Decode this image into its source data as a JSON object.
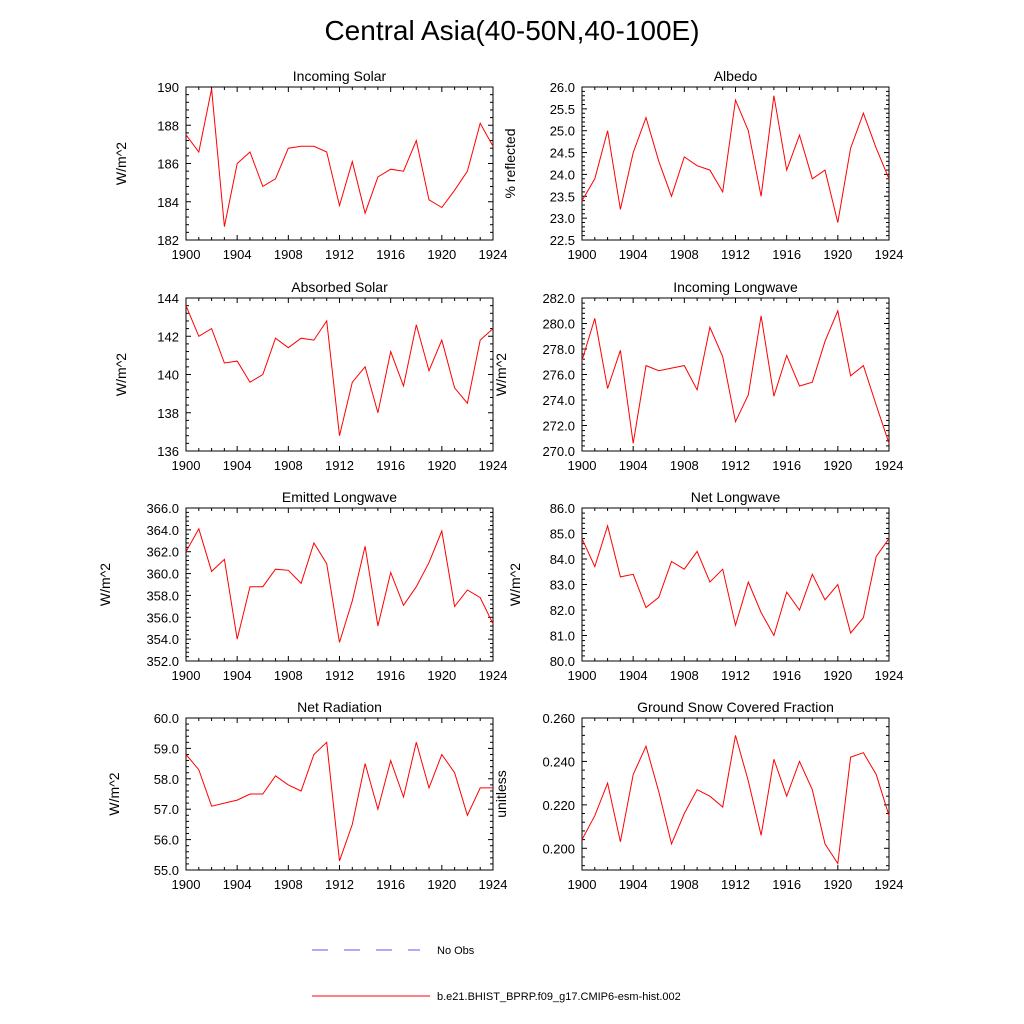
{
  "figure": {
    "title": "Central Asia(40-50N,40-100E)",
    "series_color": "#ff0000",
    "obs_color": "#5a5aff"
  },
  "legend": {
    "obs_label": "No Obs",
    "model_label": "b.e21.BHIST_BPRP.f09_g17.CMIP6-esm-hist.002"
  },
  "chart_data": [
    {
      "type": "line",
      "title": "Incoming Solar",
      "xlabel": "",
      "ylabel": "W/m^2",
      "xlim": [
        1900,
        1924
      ],
      "ylim": [
        182,
        190
      ],
      "xticks": [
        1900,
        1904,
        1908,
        1912,
        1916,
        1920,
        1924
      ],
      "xtick_labels": [
        "1900",
        "1904",
        "1908",
        "1912",
        "1916",
        "1920",
        "1924"
      ],
      "yticks": [
        182,
        184,
        186,
        188,
        190
      ],
      "ytick_labels": [
        "182",
        "184",
        "186",
        "188",
        "190"
      ],
      "x": [
        1900,
        1901,
        1902,
        1903,
        1904,
        1905,
        1906,
        1907,
        1908,
        1909,
        1910,
        1911,
        1912,
        1913,
        1914,
        1915,
        1916,
        1917,
        1918,
        1919,
        1920,
        1921,
        1922,
        1923,
        1924
      ],
      "values": [
        187.5,
        186.6,
        189.9,
        182.7,
        186.0,
        186.6,
        184.8,
        185.2,
        186.8,
        186.9,
        186.9,
        186.6,
        183.8,
        186.1,
        183.4,
        185.3,
        185.7,
        185.6,
        187.2,
        184.1,
        183.7,
        184.6,
        185.6,
        188.1,
        186.9
      ]
    },
    {
      "type": "line",
      "title": "Albedo",
      "xlabel": "",
      "ylabel": "% reflected",
      "xlim": [
        1900,
        1924
      ],
      "ylim": [
        22.5,
        26.0
      ],
      "xticks": [
        1900,
        1904,
        1908,
        1912,
        1916,
        1920,
        1924
      ],
      "xtick_labels": [
        "1900",
        "1904",
        "1908",
        "1912",
        "1916",
        "1920",
        "1924"
      ],
      "yticks": [
        22.5,
        23.0,
        23.5,
        24.0,
        24.5,
        25.0,
        25.5,
        26.0
      ],
      "ytick_labels": [
        "22.5",
        "23.0",
        "23.5",
        "24.0",
        "24.5",
        "25.0",
        "25.5",
        "26.0"
      ],
      "x": [
        1900,
        1901,
        1902,
        1903,
        1904,
        1905,
        1906,
        1907,
        1908,
        1909,
        1910,
        1911,
        1912,
        1913,
        1914,
        1915,
        1916,
        1917,
        1918,
        1919,
        1920,
        1921,
        1922,
        1923,
        1924
      ],
      "values": [
        23.4,
        23.9,
        25.0,
        23.2,
        24.5,
        25.3,
        24.3,
        23.5,
        24.4,
        24.2,
        24.1,
        23.6,
        25.7,
        25.0,
        23.5,
        25.8,
        24.1,
        24.9,
        23.9,
        24.1,
        22.9,
        24.6,
        25.4,
        24.6,
        23.9
      ]
    },
    {
      "type": "line",
      "title": "Absorbed Solar",
      "xlabel": "",
      "ylabel": "W/m^2",
      "xlim": [
        1900,
        1924
      ],
      "ylim": [
        136,
        144
      ],
      "xticks": [
        1900,
        1904,
        1908,
        1912,
        1916,
        1920,
        1924
      ],
      "xtick_labels": [
        "1900",
        "1904",
        "1908",
        "1912",
        "1916",
        "1920",
        "1924"
      ],
      "yticks": [
        136,
        138,
        140,
        142,
        144
      ],
      "ytick_labels": [
        "136",
        "138",
        "140",
        "142",
        "144"
      ],
      "x": [
        1900,
        1901,
        1902,
        1903,
        1904,
        1905,
        1906,
        1907,
        1908,
        1909,
        1910,
        1911,
        1912,
        1913,
        1914,
        1915,
        1916,
        1917,
        1918,
        1919,
        1920,
        1921,
        1922,
        1923,
        1924
      ],
      "values": [
        143.6,
        142.0,
        142.4,
        140.6,
        140.7,
        139.6,
        140.0,
        141.9,
        141.4,
        141.9,
        141.8,
        142.8,
        136.8,
        139.6,
        140.4,
        138.0,
        141.2,
        139.4,
        142.6,
        140.2,
        141.8,
        139.3,
        138.5,
        141.8,
        142.4
      ]
    },
    {
      "type": "line",
      "title": "Incoming Longwave",
      "xlabel": "",
      "ylabel": "W/m^2",
      "xlim": [
        1900,
        1924
      ],
      "ylim": [
        270.0,
        282.0
      ],
      "xticks": [
        1900,
        1904,
        1908,
        1912,
        1916,
        1920,
        1924
      ],
      "xtick_labels": [
        "1900",
        "1904",
        "1908",
        "1912",
        "1916",
        "1920",
        "1924"
      ],
      "yticks": [
        270,
        272,
        274,
        276,
        278,
        280,
        282
      ],
      "ytick_labels": [
        "270.0",
        "272.0",
        "274.0",
        "276.0",
        "278.0",
        "280.0",
        "282.0"
      ],
      "x": [
        1900,
        1901,
        1902,
        1903,
        1904,
        1905,
        1906,
        1907,
        1908,
        1909,
        1910,
        1911,
        1912,
        1913,
        1914,
        1915,
        1916,
        1917,
        1918,
        1919,
        1920,
        1921,
        1922,
        1923,
        1924
      ],
      "values": [
        277.1,
        280.4,
        274.9,
        277.9,
        270.6,
        276.7,
        276.3,
        276.5,
        276.7,
        274.8,
        279.7,
        277.4,
        272.3,
        274.4,
        280.6,
        274.3,
        277.5,
        275.1,
        275.4,
        278.6,
        281.0,
        275.9,
        276.7,
        273.6,
        270.6
      ]
    },
    {
      "type": "line",
      "title": "Emitted Longwave",
      "xlabel": "",
      "ylabel": "W/m^2",
      "xlim": [
        1900,
        1924
      ],
      "ylim": [
        352.0,
        366.0
      ],
      "xticks": [
        1900,
        1904,
        1908,
        1912,
        1916,
        1920,
        1924
      ],
      "xtick_labels": [
        "1900",
        "1904",
        "1908",
        "1912",
        "1916",
        "1920",
        "1924"
      ],
      "yticks": [
        352,
        354,
        356,
        358,
        360,
        362,
        364,
        366
      ],
      "ytick_labels": [
        "352.0",
        "354.0",
        "356.0",
        "358.0",
        "360.0",
        "362.0",
        "364.0",
        "366.0"
      ],
      "x": [
        1900,
        1901,
        1902,
        1903,
        1904,
        1905,
        1906,
        1907,
        1908,
        1909,
        1910,
        1911,
        1912,
        1913,
        1914,
        1915,
        1916,
        1917,
        1918,
        1919,
        1920,
        1921,
        1922,
        1923,
        1924
      ],
      "values": [
        362.0,
        364.1,
        360.2,
        361.3,
        354.0,
        358.8,
        358.8,
        360.4,
        360.3,
        359.1,
        362.8,
        360.9,
        353.7,
        357.5,
        362.5,
        355.2,
        360.1,
        357.1,
        358.8,
        361.0,
        363.9,
        357.0,
        358.5,
        357.8,
        355.4
      ]
    },
    {
      "type": "line",
      "title": "Net Longwave",
      "xlabel": "",
      "ylabel": "W/m^2",
      "xlim": [
        1900,
        1924
      ],
      "ylim": [
        80.0,
        86.0
      ],
      "xticks": [
        1900,
        1904,
        1908,
        1912,
        1916,
        1920,
        1924
      ],
      "xtick_labels": [
        "1900",
        "1904",
        "1908",
        "1912",
        "1916",
        "1920",
        "1924"
      ],
      "yticks": [
        80,
        81,
        82,
        83,
        84,
        85,
        86
      ],
      "ytick_labels": [
        "80.0",
        "81.0",
        "82.0",
        "83.0",
        "84.0",
        "85.0",
        "86.0"
      ],
      "x": [
        1900,
        1901,
        1902,
        1903,
        1904,
        1905,
        1906,
        1907,
        1908,
        1909,
        1910,
        1911,
        1912,
        1913,
        1914,
        1915,
        1916,
        1917,
        1918,
        1919,
        1920,
        1921,
        1922,
        1923,
        1924
      ],
      "values": [
        84.8,
        83.7,
        85.3,
        83.3,
        83.4,
        82.1,
        82.5,
        83.9,
        83.6,
        84.3,
        83.1,
        83.6,
        81.4,
        83.1,
        81.9,
        81.0,
        82.7,
        82.0,
        83.4,
        82.4,
        83.0,
        81.1,
        81.7,
        84.1,
        84.8
      ]
    },
    {
      "type": "line",
      "title": "Net Radiation",
      "xlabel": "",
      "ylabel": "W/m^2",
      "xlim": [
        1900,
        1924
      ],
      "ylim": [
        55.0,
        60.0
      ],
      "xticks": [
        1900,
        1904,
        1908,
        1912,
        1916,
        1920,
        1924
      ],
      "xtick_labels": [
        "1900",
        "1904",
        "1908",
        "1912",
        "1916",
        "1920",
        "1924"
      ],
      "yticks": [
        55,
        56,
        57,
        58,
        59,
        60
      ],
      "ytick_labels": [
        "55.0",
        "56.0",
        "57.0",
        "58.0",
        "59.0",
        "60.0"
      ],
      "x": [
        1900,
        1901,
        1902,
        1903,
        1904,
        1905,
        1906,
        1907,
        1908,
        1909,
        1910,
        1911,
        1912,
        1913,
        1914,
        1915,
        1916,
        1917,
        1918,
        1919,
        1920,
        1921,
        1922,
        1923,
        1924
      ],
      "values": [
        58.8,
        58.3,
        57.1,
        57.2,
        57.3,
        57.5,
        57.5,
        58.1,
        57.8,
        57.6,
        58.8,
        59.2,
        55.3,
        56.5,
        58.5,
        57.0,
        58.6,
        57.4,
        59.2,
        57.7,
        58.8,
        58.2,
        56.8,
        57.7,
        57.7
      ]
    },
    {
      "type": "line",
      "title": "Ground Snow Covered Fraction",
      "xlabel": "",
      "ylabel": "unitless",
      "xlim": [
        1900,
        1924
      ],
      "ylim": [
        0.19,
        0.26
      ],
      "xticks": [
        1900,
        1904,
        1908,
        1912,
        1916,
        1920,
        1924
      ],
      "xtick_labels": [
        "1900",
        "1904",
        "1908",
        "1912",
        "1916",
        "1920",
        "1924"
      ],
      "yticks": [
        0.2,
        0.22,
        0.24,
        0.26
      ],
      "ytick_labels": [
        "0.200",
        "0.220",
        "0.240",
        "0.260"
      ],
      "x": [
        1900,
        1901,
        1902,
        1903,
        1904,
        1905,
        1906,
        1907,
        1908,
        1909,
        1910,
        1911,
        1912,
        1913,
        1914,
        1915,
        1916,
        1917,
        1918,
        1919,
        1920,
        1921,
        1922,
        1923,
        1924
      ],
      "values": [
        0.204,
        0.215,
        0.23,
        0.203,
        0.234,
        0.247,
        0.226,
        0.202,
        0.216,
        0.227,
        0.224,
        0.219,
        0.252,
        0.231,
        0.206,
        0.241,
        0.224,
        0.24,
        0.227,
        0.202,
        0.193,
        0.242,
        0.244,
        0.234,
        0.215
      ]
    }
  ]
}
